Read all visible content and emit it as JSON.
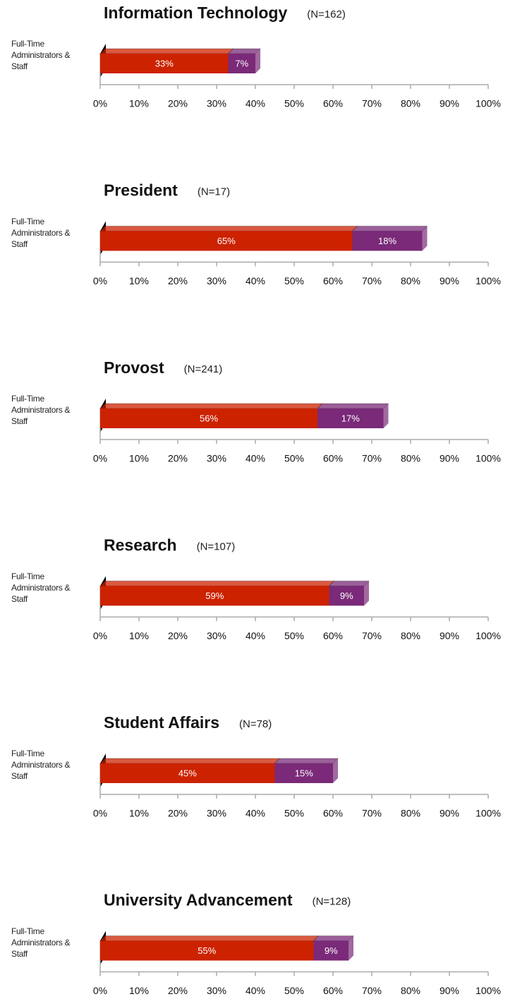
{
  "chart_data": [
    {
      "type": "bar",
      "title": "Information Technology",
      "subtitle": "(N=162)",
      "categories": [
        "Full-Time Administrators & Staff"
      ],
      "series": [
        {
          "color": "#cc2200",
          "values": [
            33
          ],
          "value_labels": [
            "33%"
          ]
        },
        {
          "color": "#7a2a78",
          "values": [
            7
          ],
          "value_labels": [
            "7%"
          ]
        }
      ],
      "xlim": [
        0,
        100
      ],
      "xticks": [
        {
          "value": 0,
          "label": "0%"
        },
        {
          "value": 10,
          "label": "10%"
        },
        {
          "value": 20,
          "label": "20%"
        },
        {
          "value": 30,
          "label": "30%"
        },
        {
          "value": 40,
          "label": "40%"
        },
        {
          "value": 50,
          "label": "50%"
        },
        {
          "value": 60,
          "label": "60%"
        },
        {
          "value": 70,
          "label": "70%"
        },
        {
          "value": 80,
          "label": "80%"
        },
        {
          "value": 90,
          "label": "90%"
        },
        {
          "value": 100,
          "label": "100%"
        }
      ]
    },
    {
      "type": "bar",
      "title": "President",
      "subtitle": "(N=17)",
      "categories": [
        "Full-Time Administrators & Staff"
      ],
      "series": [
        {
          "color": "#cc2200",
          "values": [
            65
          ],
          "value_labels": [
            "65%"
          ]
        },
        {
          "color": "#7a2a78",
          "values": [
            18
          ],
          "value_labels": [
            "18%"
          ]
        }
      ],
      "xlim": [
        0,
        100
      ],
      "xticks": [
        {
          "value": 0,
          "label": "0%"
        },
        {
          "value": 10,
          "label": "10%"
        },
        {
          "value": 20,
          "label": "20%"
        },
        {
          "value": 30,
          "label": "30%"
        },
        {
          "value": 40,
          "label": "40%"
        },
        {
          "value": 50,
          "label": "50%"
        },
        {
          "value": 60,
          "label": "60%"
        },
        {
          "value": 70,
          "label": "70%"
        },
        {
          "value": 80,
          "label": "80%"
        },
        {
          "value": 90,
          "label": "90%"
        },
        {
          "value": 100,
          "label": "100%"
        }
      ]
    },
    {
      "type": "bar",
      "title": "Provost",
      "subtitle": "(N=241)",
      "categories": [
        "Full-Time Administrators & Staff"
      ],
      "series": [
        {
          "color": "#cc2200",
          "values": [
            56
          ],
          "value_labels": [
            "56%"
          ]
        },
        {
          "color": "#7a2a78",
          "values": [
            17
          ],
          "value_labels": [
            "17%"
          ]
        }
      ],
      "xlim": [
        0,
        100
      ],
      "xticks": [
        {
          "value": 0,
          "label": "0%"
        },
        {
          "value": 10,
          "label": "10%"
        },
        {
          "value": 20,
          "label": "20%"
        },
        {
          "value": 30,
          "label": "30%"
        },
        {
          "value": 40,
          "label": "40%"
        },
        {
          "value": 50,
          "label": "50%"
        },
        {
          "value": 60,
          "label": "60%"
        },
        {
          "value": 70,
          "label": "70%"
        },
        {
          "value": 80,
          "label": "80%"
        },
        {
          "value": 90,
          "label": "90%"
        },
        {
          "value": 100,
          "label": "100%"
        }
      ]
    },
    {
      "type": "bar",
      "title": "Research",
      "subtitle": "(N=107)",
      "categories": [
        "Full-Time Administrators & Staff"
      ],
      "series": [
        {
          "color": "#cc2200",
          "values": [
            59
          ],
          "value_labels": [
            "59%"
          ]
        },
        {
          "color": "#7a2a78",
          "values": [
            9
          ],
          "value_labels": [
            "9%"
          ]
        }
      ],
      "xlim": [
        0,
        100
      ],
      "xticks": [
        {
          "value": 0,
          "label": "0%"
        },
        {
          "value": 10,
          "label": "10%"
        },
        {
          "value": 20,
          "label": "20%"
        },
        {
          "value": 30,
          "label": "30%"
        },
        {
          "value": 40,
          "label": "40%"
        },
        {
          "value": 50,
          "label": "50%"
        },
        {
          "value": 60,
          "label": "60%"
        },
        {
          "value": 70,
          "label": "70%"
        },
        {
          "value": 80,
          "label": "80%"
        },
        {
          "value": 90,
          "label": "90%"
        },
        {
          "value": 100,
          "label": "100%"
        }
      ]
    },
    {
      "type": "bar",
      "title": "Student Affairs",
      "subtitle": "(N=78)",
      "categories": [
        "Full-Time Administrators & Staff"
      ],
      "series": [
        {
          "color": "#cc2200",
          "values": [
            45
          ],
          "value_labels": [
            "45%"
          ]
        },
        {
          "color": "#7a2a78",
          "values": [
            15
          ],
          "value_labels": [
            "15%"
          ]
        }
      ],
      "xlim": [
        0,
        100
      ],
      "xticks": [
        {
          "value": 0,
          "label": "0%"
        },
        {
          "value": 10,
          "label": "10%"
        },
        {
          "value": 20,
          "label": "20%"
        },
        {
          "value": 30,
          "label": "30%"
        },
        {
          "value": 40,
          "label": "40%"
        },
        {
          "value": 50,
          "label": "50%"
        },
        {
          "value": 60,
          "label": "60%"
        },
        {
          "value": 70,
          "label": "70%"
        },
        {
          "value": 80,
          "label": "80%"
        },
        {
          "value": 90,
          "label": "90%"
        },
        {
          "value": 100,
          "label": "100%"
        }
      ]
    },
    {
      "type": "bar",
      "title": "University Advancement",
      "subtitle": "(N=128)",
      "categories": [
        "Full-Time Administrators & Staff"
      ],
      "series": [
        {
          "color": "#cc2200",
          "values": [
            55
          ],
          "value_labels": [
            "55%"
          ]
        },
        {
          "color": "#7a2a78",
          "values": [
            9
          ],
          "value_labels": [
            "9%"
          ]
        }
      ],
      "xlim": [
        0,
        100
      ],
      "xticks": [
        {
          "value": 0,
          "label": "0%"
        },
        {
          "value": 10,
          "label": "10%"
        },
        {
          "value": 20,
          "label": "20%"
        },
        {
          "value": 30,
          "label": "30%"
        },
        {
          "value": 40,
          "label": "40%"
        },
        {
          "value": 50,
          "label": "50%"
        },
        {
          "value": 60,
          "label": "60%"
        },
        {
          "value": 70,
          "label": "70%"
        },
        {
          "value": 80,
          "label": "80%"
        },
        {
          "value": 90,
          "label": "90%"
        },
        {
          "value": 100,
          "label": "100%"
        }
      ]
    }
  ]
}
